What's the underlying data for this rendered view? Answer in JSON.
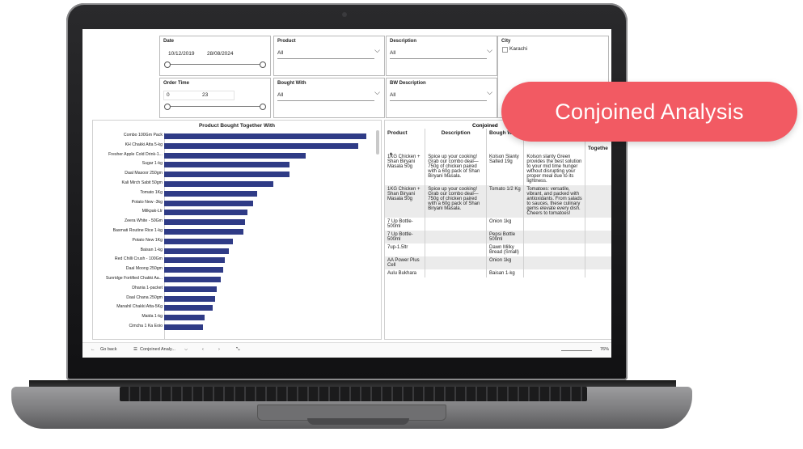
{
  "filters": {
    "date": {
      "label": "Date",
      "start": "10/12/2019",
      "end": "28/08/2024"
    },
    "product": {
      "label": "Product",
      "value": "All"
    },
    "description": {
      "label": "Description",
      "value": "All"
    },
    "city": {
      "label": "City",
      "option": "Karachi"
    },
    "order_time": {
      "label": "Order Time",
      "min": "0",
      "max": "23"
    },
    "bought_with": {
      "label": "Bought With",
      "value": "All"
    },
    "bw_description": {
      "label": "BW Description",
      "value": "All"
    }
  },
  "chart_data": {
    "type": "bar",
    "title": "Product Bought Together With",
    "orientation": "horizontal",
    "categories": [
      "Combo 100Gm Pack",
      "KH Chakki Atta 5-kg",
      "Fresher Apple Cold Drink-1...",
      "Sugar 1-kg",
      "Daal Masoor 250gm",
      "Kali Mirch Sabit 50gm",
      "Tomato 1Kg",
      "Potato New -3kg",
      "Milkpak-Ltr",
      "Zeera White - 50Gm",
      "Basmati Routine Rice 1-kg",
      "Potato New 1Kg",
      "Baisan 1-kg",
      "Red Chilli Crush - 100Gm",
      "Daal Moong 250gm",
      "Sunridge Fortified Chakki Aa...",
      "Dhania 1-packet",
      "Daal Chana 250gm",
      "Manahil Chakki Atta-5Kg",
      "Maida 1-kg",
      "Cimcha 1 Ka Eoio"
    ],
    "values": [
      100,
      96,
      70,
      62,
      62,
      54,
      46,
      44,
      41,
      40,
      39,
      34,
      32,
      30,
      29,
      28,
      26,
      25,
      24,
      20,
      19
    ]
  },
  "table": {
    "title": "Conjoined",
    "headers": [
      "Product",
      "Description",
      "Bough With",
      "",
      "Togethe"
    ],
    "rows": [
      {
        "product": "1KG Chicken + Shan Biryani Masala 50g",
        "description": "Spice up your cooking! Grab our combo deal—750g of chicken paired with a 60g pack of Shan Biryani Masala.",
        "bought": "Kolson Slanty Salted 19g",
        "bw_desc": "Kolson slanty Green provides the best solution to your mid time hunger without disrupting your proper meal due to its lightness.",
        "together": ""
      },
      {
        "product": "1KG Chicken + Shan Biryani Masala 50g",
        "description": "Spice up your cooking! Grab our combo deal—750g of chicken paired with a 60g pack of Shan Biryani Masala.",
        "bought": "Tomato 1/2 Kg",
        "bw_desc": "Tomatoes: versatile, vibrant, and packed with antioxidants. From salads to sauces, these culinary gems elevate every dish. Cheers to tomatoes!",
        "together": ""
      },
      {
        "product": "7 Up Bottle-500ml",
        "description": "",
        "bought": "Onion 1kg",
        "bw_desc": "",
        "together": ""
      },
      {
        "product": "7 Up Bottle-500ml",
        "description": "",
        "bought": "Pepsi Bottle 500ml",
        "bw_desc": "",
        "together": ""
      },
      {
        "product": "7up-1.5ltr",
        "description": "",
        "bought": "Dawn Milky Bread (Small)",
        "bw_desc": "",
        "together": ""
      },
      {
        "product": "AA Power Plus Cell",
        "description": "",
        "bought": "Onion 1kg",
        "bw_desc": "",
        "together": ""
      },
      {
        "product": "Aulu Bukhara",
        "description": "",
        "bought": "Baisan 1-kg",
        "bw_desc": "",
        "together": ""
      }
    ]
  },
  "tabs": {
    "back": "Go back",
    "page": "Conjoined Analy...",
    "zoom": "76%"
  },
  "badge": {
    "text": "Conjoined Analysis"
  }
}
